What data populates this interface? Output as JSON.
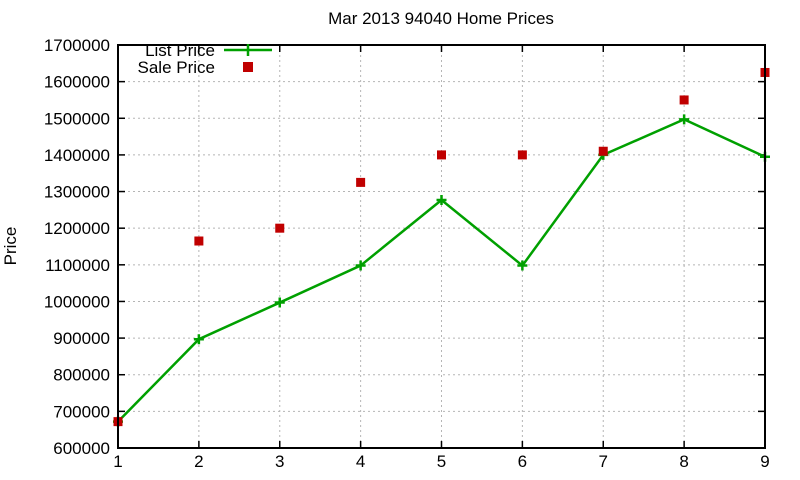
{
  "chart": {
    "background_color": "#ffffff",
    "axis_color": "#000000",
    "grid_color": "#b5b5b5"
  },
  "chart_data": {
    "type": "line",
    "title": "Mar 2013 94040 Home Prices",
    "xlabel": "",
    "ylabel": "Price",
    "x": [
      1,
      2,
      3,
      4,
      5,
      6,
      7,
      8,
      9
    ],
    "xticks": [
      1,
      2,
      3,
      4,
      5,
      6,
      7,
      8,
      9
    ],
    "yticks": [
      600000,
      700000,
      800000,
      900000,
      1000000,
      1100000,
      1200000,
      1300000,
      1400000,
      1500000,
      1600000,
      1700000
    ],
    "xlim": [
      1,
      9
    ],
    "ylim": [
      600000,
      1700000
    ],
    "grid": true,
    "legend_position": "top-left-inside",
    "series": [
      {
        "name": "List Price",
        "style": "line-with-plus-markers",
        "color": "#00a000",
        "values": [
          672000,
          897000,
          997000,
          1098000,
          1277000,
          1098000,
          1400000,
          1497000,
          1395000
        ]
      },
      {
        "name": "Sale Price",
        "style": "square-points",
        "color": "#c00000",
        "values": [
          672000,
          1165000,
          1200000,
          1325000,
          1400000,
          1400000,
          1410000,
          1550000,
          1625000
        ]
      }
    ]
  }
}
